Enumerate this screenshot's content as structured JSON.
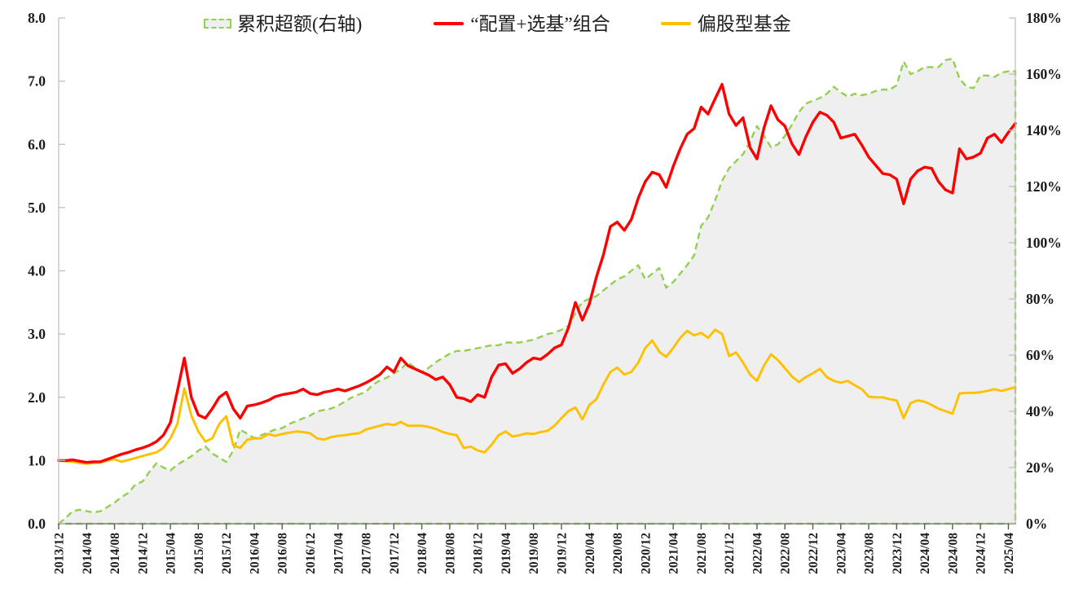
{
  "page": {
    "background": "#FFFFFF",
    "title": ""
  },
  "colors": {
    "combo_red": "#FF0000",
    "equity_fund_gold": "#FFC000",
    "excess_green": "#92D050",
    "area_fill": "#EFEFEF",
    "axis_line": "#BFBFBF",
    "x_axis_line": "#7F7F7F",
    "tick_label": "#1A1A1A"
  },
  "legend": {
    "position": "top",
    "items": [
      {
        "label": "累积超额(右轴)",
        "series_id": "cumulative-excess",
        "swatch": "dashed-area-box"
      },
      {
        "label": "“配置+选基”组合",
        "series_id": "combo",
        "swatch": "red-line"
      },
      {
        "label": "偏股型基金",
        "series_id": "equity-fund",
        "swatch": "gold-line"
      }
    ]
  },
  "chart_data": {
    "type": "line",
    "title": "",
    "xlabel": "",
    "ylabel_left": "",
    "ylabel_right": "",
    "grid": "off",
    "legend_position": "top",
    "x_start": "2013/12",
    "x_end": "2025/05",
    "x_frequency": "monthly",
    "x_ticks_every_n_points": 4,
    "x_tick_labels": [
      "2013/12",
      "2014/04",
      "2014/08",
      "2014/12",
      "2015/04",
      "2015/08",
      "2015/12",
      "2016/04",
      "2016/08",
      "2016/12",
      "2017/04",
      "2017/08",
      "2017/12",
      "2018/04",
      "2018/08",
      "2018/12",
      "2019/04",
      "2019/08",
      "2019/12",
      "2020/04",
      "2020/08",
      "2020/12",
      "2021/04",
      "2021/08",
      "2021/12",
      "2022/04",
      "2022/08",
      "2022/12",
      "2023/04",
      "2023/08",
      "2023/12",
      "2024/04",
      "2024/08",
      "2024/12",
      "2025/04"
    ],
    "left_axis": {
      "min": 0,
      "max": 8,
      "step": 1,
      "tick_labels": [
        "0.0",
        "1.0",
        "2.0",
        "3.0",
        "4.0",
        "5.0",
        "6.0",
        "7.0",
        "8.0"
      ]
    },
    "right_axis": {
      "min": 0,
      "max": 180,
      "step": 20,
      "unit": "%",
      "tick_labels": [
        "0%",
        "20%",
        "40%",
        "60%",
        "80%",
        "100%",
        "120%",
        "140%",
        "160%",
        "180%"
      ]
    },
    "series": [
      {
        "id": "cumulative-excess",
        "name": "累积超额(右轴)",
        "axis": "right",
        "type": "area",
        "line_style": "dashed",
        "color": "#92D050",
        "fill": "#EFEFEF",
        "width": 2.4,
        "values": [
          0,
          2,
          4.5,
          5,
          4.5,
          4,
          4.5,
          6,
          7.5,
          9.5,
          11,
          14,
          15,
          18.5,
          21.5,
          20,
          19,
          21,
          22.5,
          24,
          26,
          27.5,
          25,
          23.5,
          22,
          26,
          33.5,
          32,
          30.5,
          31.5,
          32.5,
          33.5,
          34,
          35.5,
          36.5,
          37.5,
          38.5,
          40,
          40.5,
          41,
          42,
          43.5,
          45,
          46,
          47,
          49.5,
          51,
          52,
          53.5,
          55,
          57.5,
          55.5,
          54,
          55.5,
          57.5,
          59,
          60.5,
          61.5,
          61.5,
          62,
          62.5,
          63,
          63.5,
          63.5,
          64.5,
          64.5,
          64.5,
          65,
          65.5,
          66.5,
          67.5,
          68,
          69,
          70.5,
          75,
          79,
          80,
          81,
          83,
          85,
          87,
          88,
          90,
          92,
          87,
          89,
          91,
          84,
          86,
          89,
          92,
          95.5,
          106,
          109,
          115,
          122,
          126.5,
          129,
          131.5,
          136,
          141.5,
          138,
          134,
          135,
          138,
          142,
          146.5,
          149.5,
          150.5,
          151.5,
          153,
          155.5,
          153.5,
          152,
          153,
          152.5,
          153,
          154,
          154.5,
          154.5,
          156,
          164.5,
          160,
          161,
          162.5,
          162.5,
          162.5,
          165,
          165.5,
          158.5,
          155.5,
          155,
          159.5,
          159.5,
          159,
          160.5,
          161,
          161
        ]
      },
      {
        "id": "equity-fund",
        "name": "偏股型基金",
        "axis": "left",
        "type": "line",
        "line_style": "solid",
        "color": "#FFC000",
        "width": 2.9,
        "values": [
          1.0,
          0.99,
          0.98,
          0.96,
          0.95,
          0.96,
          0.97,
          1.0,
          1.02,
          0.98,
          1.01,
          1.04,
          1.07,
          1.1,
          1.13,
          1.2,
          1.35,
          1.58,
          2.14,
          1.71,
          1.46,
          1.3,
          1.35,
          1.58,
          1.7,
          1.24,
          1.2,
          1.33,
          1.35,
          1.35,
          1.42,
          1.39,
          1.42,
          1.44,
          1.46,
          1.45,
          1.43,
          1.35,
          1.33,
          1.37,
          1.39,
          1.4,
          1.42,
          1.43,
          1.49,
          1.52,
          1.55,
          1.58,
          1.56,
          1.61,
          1.55,
          1.55,
          1.55,
          1.53,
          1.5,
          1.45,
          1.42,
          1.4,
          1.2,
          1.22,
          1.16,
          1.13,
          1.25,
          1.4,
          1.46,
          1.38,
          1.4,
          1.43,
          1.42,
          1.45,
          1.47,
          1.55,
          1.67,
          1.78,
          1.84,
          1.65,
          1.88,
          1.97,
          2.2,
          2.4,
          2.47,
          2.36,
          2.4,
          2.55,
          2.78,
          2.9,
          2.72,
          2.64,
          2.78,
          2.94,
          3.05,
          2.98,
          3.02,
          2.94,
          3.07,
          3.0,
          2.65,
          2.71,
          2.55,
          2.36,
          2.26,
          2.5,
          2.68,
          2.59,
          2.46,
          2.33,
          2.24,
          2.32,
          2.38,
          2.45,
          2.32,
          2.26,
          2.23,
          2.26,
          2.19,
          2.13,
          2.01,
          2.0,
          2.0,
          1.97,
          1.95,
          1.67,
          1.91,
          1.95,
          1.93,
          1.88,
          1.82,
          1.78,
          1.74,
          2.06,
          2.07,
          2.07,
          2.08,
          2.1,
          2.13,
          2.1,
          2.13,
          2.16
        ]
      },
      {
        "id": "combo",
        "name": "“配置+选基”组合",
        "axis": "left",
        "type": "line",
        "line_style": "solid",
        "color": "#FF0000",
        "width": 3.4,
        "values": [
          1.0,
          1.0,
          1.01,
          0.99,
          0.97,
          0.98,
          0.98,
          1.02,
          1.06,
          1.1,
          1.13,
          1.17,
          1.2,
          1.24,
          1.3,
          1.4,
          1.6,
          2.1,
          2.62,
          2.0,
          1.72,
          1.67,
          1.82,
          2.0,
          2.08,
          1.82,
          1.67,
          1.86,
          1.88,
          1.91,
          1.95,
          2.01,
          2.04,
          2.06,
          2.08,
          2.13,
          2.06,
          2.04,
          2.08,
          2.1,
          2.13,
          2.1,
          2.14,
          2.18,
          2.23,
          2.29,
          2.36,
          2.48,
          2.4,
          2.62,
          2.5,
          2.45,
          2.4,
          2.35,
          2.28,
          2.32,
          2.2,
          2.0,
          1.98,
          1.93,
          2.04,
          2.0,
          2.32,
          2.51,
          2.53,
          2.38,
          2.45,
          2.55,
          2.62,
          2.6,
          2.68,
          2.78,
          2.83,
          3.1,
          3.5,
          3.22,
          3.48,
          3.9,
          4.25,
          4.7,
          4.77,
          4.64,
          4.81,
          5.15,
          5.41,
          5.56,
          5.52,
          5.32,
          5.65,
          5.93,
          6.16,
          6.25,
          6.59,
          6.48,
          6.72,
          6.95,
          6.48,
          6.3,
          6.42,
          5.95,
          5.77,
          6.26,
          6.61,
          6.39,
          6.29,
          6.01,
          5.84,
          6.12,
          6.35,
          6.51,
          6.46,
          6.35,
          6.1,
          6.13,
          6.16,
          5.99,
          5.8,
          5.67,
          5.54,
          5.52,
          5.45,
          5.06,
          5.45,
          5.58,
          5.64,
          5.62,
          5.41,
          5.28,
          5.23,
          5.93,
          5.77,
          5.8,
          5.86,
          6.1,
          6.16,
          6.03,
          6.19,
          6.33
        ]
      }
    ]
  }
}
